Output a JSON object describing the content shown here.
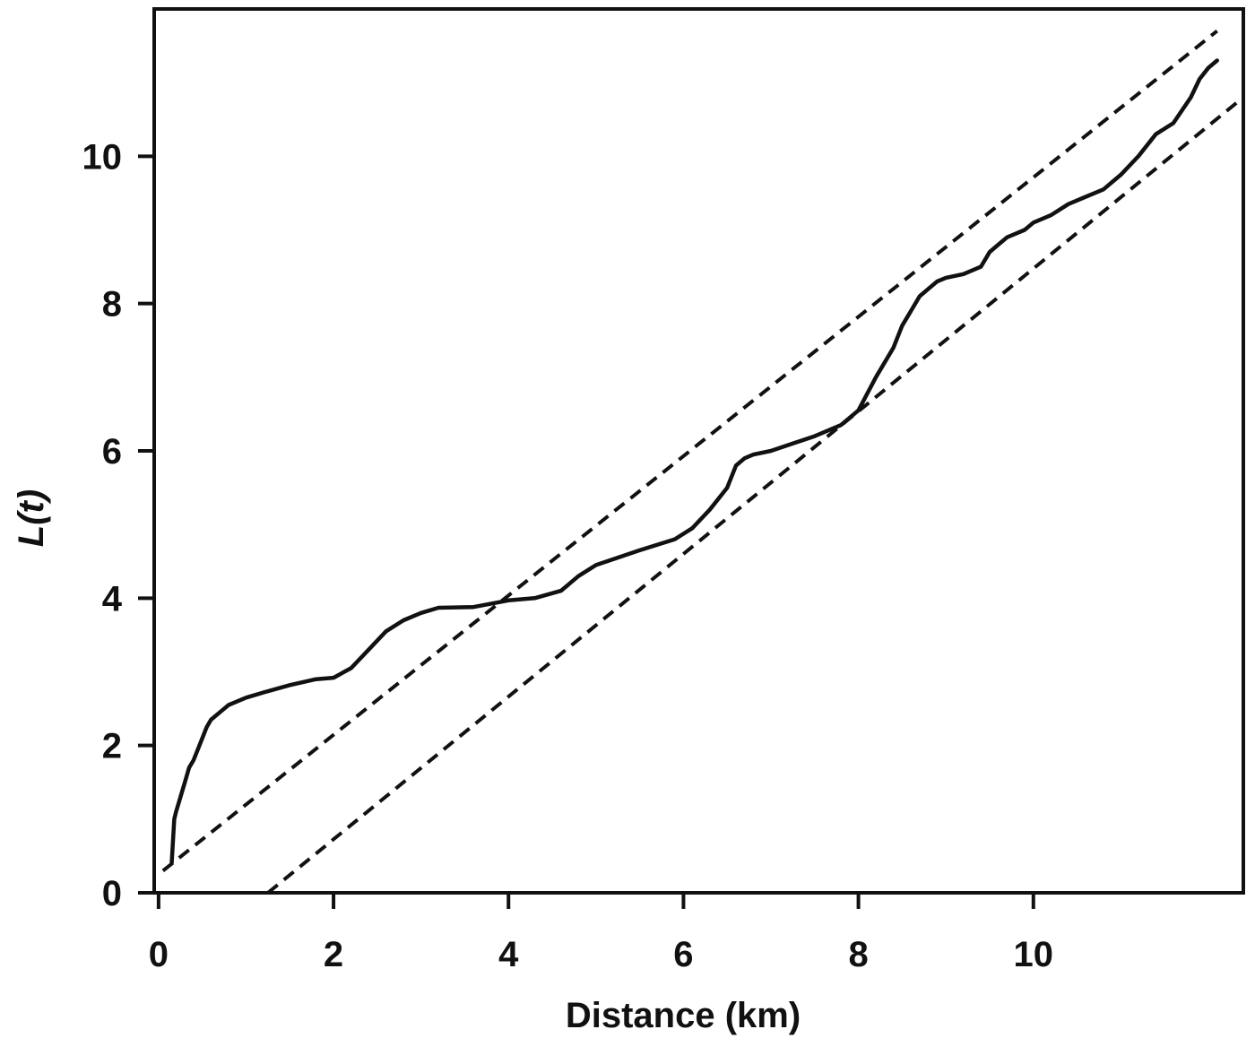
{
  "chart_data": {
    "type": "line",
    "title": "",
    "xlabel": "Distance (km)",
    "ylabel": "L(t)",
    "xlim": [
      -0.05,
      12.4
    ],
    "ylim": [
      0,
      12.0
    ],
    "x_ticks": [
      0,
      2,
      4,
      6,
      8,
      10
    ],
    "y_ticks": [
      0,
      2,
      4,
      6,
      8,
      10
    ],
    "x_tick_labels": [
      "0",
      "2",
      "4",
      "6",
      "8",
      "10"
    ],
    "y_tick_labels": [
      "0",
      "2",
      "4",
      "6",
      "8",
      "10"
    ],
    "grid": false,
    "legend": "none",
    "series": [
      {
        "style": "solid",
        "color": "#111111",
        "x": [
          0.15,
          0.18,
          0.2,
          0.25,
          0.3,
          0.35,
          0.4,
          0.45,
          0.5,
          0.55,
          0.6,
          0.7,
          0.8,
          0.9,
          1.0,
          1.2,
          1.5,
          1.8,
          2.0,
          2.2,
          2.4,
          2.6,
          2.8,
          3.0,
          3.2,
          3.6,
          4.0,
          4.3,
          4.6,
          4.8,
          5.0,
          5.5,
          5.9,
          6.1,
          6.3,
          6.5,
          6.6,
          6.7,
          6.8,
          7.0,
          7.5,
          7.8,
          8.0,
          8.2,
          8.4,
          8.5,
          8.6,
          8.7,
          8.8,
          8.9,
          9.0,
          9.2,
          9.4,
          9.5,
          9.6,
          9.7,
          9.8,
          9.9,
          10.0,
          10.2,
          10.4,
          10.6,
          10.8,
          11.0,
          11.2,
          11.4,
          11.6,
          11.8,
          11.9,
          12.0,
          12.1
        ],
        "y": [
          0.4,
          1.0,
          1.1,
          1.3,
          1.5,
          1.7,
          1.8,
          1.95,
          2.1,
          2.25,
          2.35,
          2.45,
          2.55,
          2.6,
          2.65,
          2.72,
          2.82,
          2.9,
          2.92,
          3.05,
          3.3,
          3.55,
          3.7,
          3.8,
          3.87,
          3.88,
          3.97,
          4.0,
          4.1,
          4.3,
          4.45,
          4.65,
          4.8,
          4.95,
          5.2,
          5.5,
          5.8,
          5.9,
          5.95,
          6.0,
          6.2,
          6.35,
          6.55,
          7.0,
          7.4,
          7.7,
          7.9,
          8.1,
          8.2,
          8.3,
          8.35,
          8.4,
          8.5,
          8.7,
          8.8,
          8.9,
          8.95,
          9.0,
          9.1,
          9.2,
          9.35,
          9.45,
          9.55,
          9.75,
          10.0,
          10.3,
          10.45,
          10.8,
          11.05,
          11.2,
          11.3
        ]
      },
      {
        "style": "dashed",
        "color": "#111111",
        "x": [
          0.05,
          12.1
        ],
        "y": [
          0.3,
          11.7
        ]
      },
      {
        "style": "dashed",
        "color": "#111111",
        "x": [
          1.25,
          12.4
        ],
        "y": [
          0,
          10.8
        ]
      }
    ]
  }
}
